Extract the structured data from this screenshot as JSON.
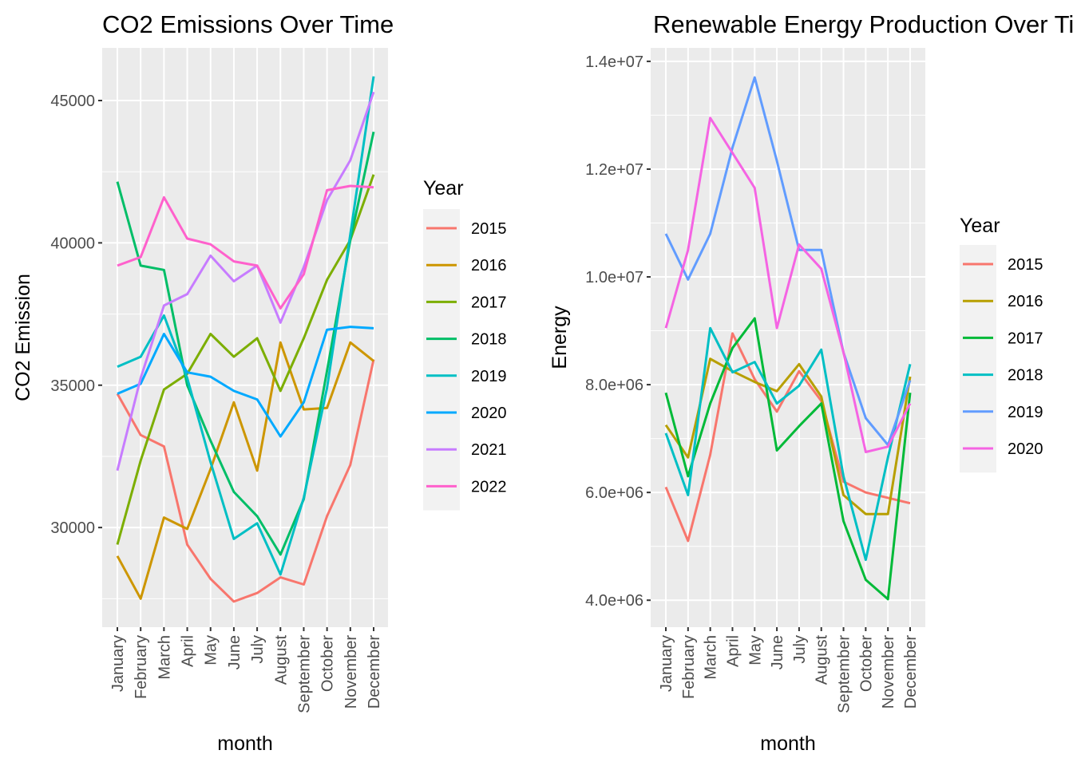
{
  "chart_data": [
    {
      "type": "line",
      "title": "CO2 Emissions Over Time",
      "xlabel": "month",
      "ylabel": "CO2 Emission",
      "categories": [
        "January",
        "February",
        "March",
        "April",
        "May",
        "June",
        "July",
        "August",
        "September",
        "October",
        "November",
        "December"
      ],
      "yticks": [
        30000,
        35000,
        40000,
        45000
      ],
      "ytick_labels": [
        "30000",
        "35000",
        "40000",
        "45000"
      ],
      "ylim": [
        26500,
        46850
      ],
      "grid": true,
      "legend": {
        "title": "Year",
        "position": "right"
      },
      "series": [
        {
          "name": "2015",
          "color": "#F8766D",
          "values": [
            34700,
            33250,
            32850,
            29400,
            28200,
            27400,
            27700,
            28250,
            28000,
            30400,
            32200,
            35900
          ]
        },
        {
          "name": "2016",
          "color": "#CD9600",
          "values": [
            29000,
            27500,
            30350,
            29950,
            32050,
            34400,
            32000,
            36500,
            34150,
            34200,
            36500,
            35850
          ]
        },
        {
          "name": "2017",
          "color": "#7CAE00",
          "values": [
            29400,
            32350,
            34850,
            35400,
            36800,
            36000,
            36650,
            34800,
            36650,
            38700,
            40100,
            42400
          ]
        },
        {
          "name": "2018",
          "color": "#00BE67",
          "values": [
            42150,
            39200,
            39050,
            35000,
            33050,
            31250,
            30400,
            29050,
            31000,
            35500,
            40100,
            43900
          ]
        },
        {
          "name": "2019",
          "color": "#00BFC4",
          "values": [
            35650,
            36000,
            37450,
            35250,
            32300,
            29600,
            30150,
            28350,
            31050,
            34900,
            40300,
            45850
          ]
        },
        {
          "name": "2020",
          "color": "#00A9FF",
          "values": [
            34700,
            35050,
            36800,
            35450,
            35300,
            34800,
            34500,
            33200,
            34400,
            36950,
            37050,
            37000
          ]
        },
        {
          "name": "2021",
          "color": "#C77CFF",
          "values": [
            32000,
            35250,
            37800,
            38200,
            39550,
            38650,
            39200,
            37200,
            39150,
            41500,
            42900,
            45300
          ]
        },
        {
          "name": "2022",
          "color": "#FF61CC",
          "values": [
            39200,
            39500,
            41600,
            40150,
            39950,
            39350,
            39200,
            37700,
            38900,
            41850,
            42000,
            41950
          ]
        }
      ]
    },
    {
      "type": "line",
      "title": "Renewable Energy Production Over Time",
      "xlabel": "month",
      "ylabel": "Energy",
      "categories": [
        "January",
        "February",
        "March",
        "April",
        "May",
        "June",
        "July",
        "August",
        "September",
        "October",
        "November",
        "December"
      ],
      "yticks": [
        4000000,
        6000000,
        8000000,
        10000000,
        12000000,
        14000000
      ],
      "ytick_labels": [
        "4.0e+06",
        "6.0e+06",
        "8.0e+06",
        "1.0e+07",
        "1.2e+07",
        "1.4e+07"
      ],
      "ylim": [
        3500000,
        14250000
      ],
      "grid": true,
      "legend": {
        "title": "Year",
        "position": "right"
      },
      "series": [
        {
          "name": "2015",
          "color": "#F8766D",
          "values": [
            6100000,
            5100000,
            6700000,
            8950000,
            8100000,
            7500000,
            8250000,
            7700000,
            6200000,
            6000000,
            5900000,
            5800000
          ]
        },
        {
          "name": "2016",
          "color": "#B79F00",
          "values": [
            7250000,
            6650000,
            8480000,
            8250000,
            8050000,
            7880000,
            8380000,
            7780000,
            5950000,
            5600000,
            5600000,
            8150000
          ]
        },
        {
          "name": "2017",
          "color": "#00BA38",
          "values": [
            7850000,
            6300000,
            7650000,
            8680000,
            9230000,
            6780000,
            7230000,
            7650000,
            5470000,
            4380000,
            4020000,
            7850000
          ]
        },
        {
          "name": "2018",
          "color": "#00BFC4",
          "values": [
            7100000,
            5950000,
            9050000,
            8230000,
            8420000,
            7650000,
            7980000,
            8650000,
            6300000,
            4750000,
            6650000,
            8380000
          ]
        },
        {
          "name": "2019",
          "color": "#619CFF",
          "values": [
            10800000,
            9950000,
            10800000,
            12400000,
            13700000,
            12150000,
            10500000,
            10500000,
            8600000,
            7380000,
            6880000,
            8080000
          ]
        },
        {
          "name": "2020",
          "color": "#F564E3",
          "values": [
            9050000,
            10500000,
            12950000,
            12300000,
            11650000,
            9050000,
            10600000,
            10150000,
            8600000,
            6750000,
            6850000,
            7650000
          ]
        }
      ]
    }
  ]
}
